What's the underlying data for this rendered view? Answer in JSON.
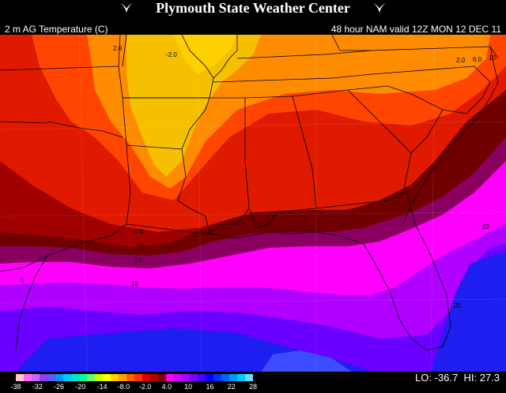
{
  "header": {
    "title": "Plymouth State Weather Center",
    "field_label": "2 m AG Temperature (C)",
    "valid_label": "48 hour NAM valid 12Z MON 12 DEC 11"
  },
  "contour_labels": [
    "-2.0",
    "2.0",
    "2.0",
    "6.0",
    "10",
    "4.0",
    "10",
    "14",
    "18",
    "6",
    "22",
    "22"
  ],
  "legend": {
    "ticks": [
      "-38",
      "-32",
      "-26",
      "-20",
      "-14",
      "-8.0",
      "-2.0",
      "4.0",
      "10",
      "16",
      "22",
      "28"
    ],
    "colors": [
      "#ffc8c8",
      "#ff64ff",
      "#c864ff",
      "#8c3cff",
      "#5a5aff",
      "#0096ff",
      "#00c8ff",
      "#00e6c8",
      "#00ff96",
      "#64ff64",
      "#c8ff00",
      "#ffff00",
      "#ffd200",
      "#ffa000",
      "#ff6400",
      "#ff3200",
      "#dc0000",
      "#b40000",
      "#7d0000",
      "#ff00ff",
      "#d200ff",
      "#aa00ff",
      "#7d00ff",
      "#4b00ff",
      "#0000ff",
      "#0032ff",
      "#0064ff",
      "#0096ff",
      "#00c8ff",
      "#64dcff"
    ],
    "lo_label": "LO: -36.7",
    "hi_label": "HI: 27.3"
  },
  "colors": {
    "band_warm_yellow": "#f5c000",
    "band_orange": "#ff8c00",
    "band_red_orange": "#ff4500",
    "band_red": "#e01a00",
    "band_dark_red": "#a00000",
    "band_maroon": "#700000",
    "band_purple_dark": "#8a0060",
    "band_magenta": "#ff00ff",
    "band_violet": "#b000ff",
    "band_indigo": "#6a00ff",
    "band_blue": "#1e1ef0"
  }
}
